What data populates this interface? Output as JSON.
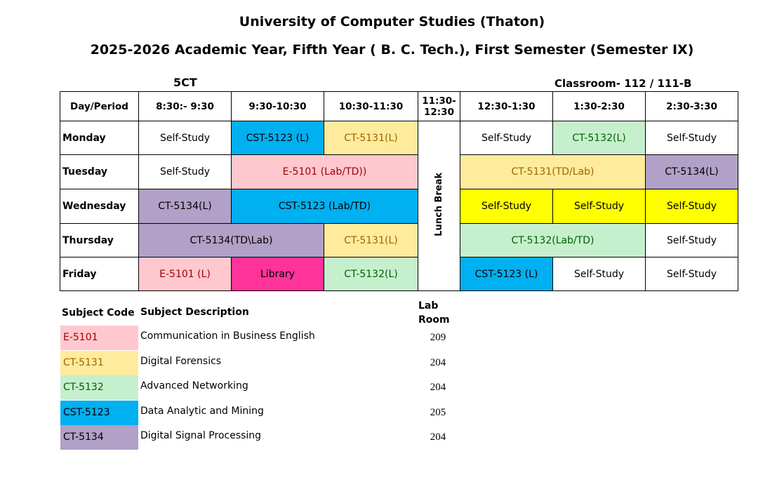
{
  "header": {
    "title": "University of Computer Studies (Thaton)",
    "subtitle": "2025-2026 Academic Year, Fifth Year ( B. C. Tech.), First Semester (Semester IX)",
    "class_name": "5CT",
    "classroom": "Classroom- 112 / 111-B"
  },
  "timetable": {
    "columns": [
      "Day/Period",
      "8:30:- 9:30",
      "9:30-10:30",
      "10:30-11:30",
      "11:30-12:30",
      "12:30-1:30",
      "1:30-2:30",
      "2:30-3:30"
    ],
    "lunch": "Lunch Break",
    "rows": [
      [
        "Monday",
        "Self-Study",
        "CST-5123 (L)",
        "CT-5131(L)",
        "Self-Study",
        "CT-5132(L)",
        "Self-Study"
      ],
      [
        "Tuesday",
        "Self-Study",
        "E-5101 (Lab/TD))",
        "CT-5131(TD/Lab)",
        "CT-5134(L)"
      ],
      [
        "Wednesday",
        "CT-5134(L)",
        "CST-5123 (Lab/TD)",
        "Self-Study",
        "Self-Study",
        "Self-Study"
      ],
      [
        "Thursday",
        "CT-5134(TD\\Lab)",
        "CT-5131(L)",
        "CT-5132(Lab/TD)",
        "Self-Study"
      ],
      [
        "Friday",
        "E-5101 (L)",
        "Library",
        "CT-5132(L)",
        "CST-5123 (L)",
        "Self-Study",
        "Self-Study"
      ]
    ]
  },
  "legend": {
    "columns": [
      "Subject Code",
      "Subject Description",
      "Lab Room"
    ],
    "rows": [
      [
        "E-5101",
        "Communication in Business English",
        "209"
      ],
      [
        "CT-5131",
        "Digital Forensics",
        "204"
      ],
      [
        "CT-5132",
        "Advanced Networking",
        "204"
      ],
      [
        "CST-5123",
        "Data Analytic and Mining",
        "205"
      ],
      [
        "CT-5134",
        "Digital Signal Processing",
        "204"
      ]
    ]
  }
}
